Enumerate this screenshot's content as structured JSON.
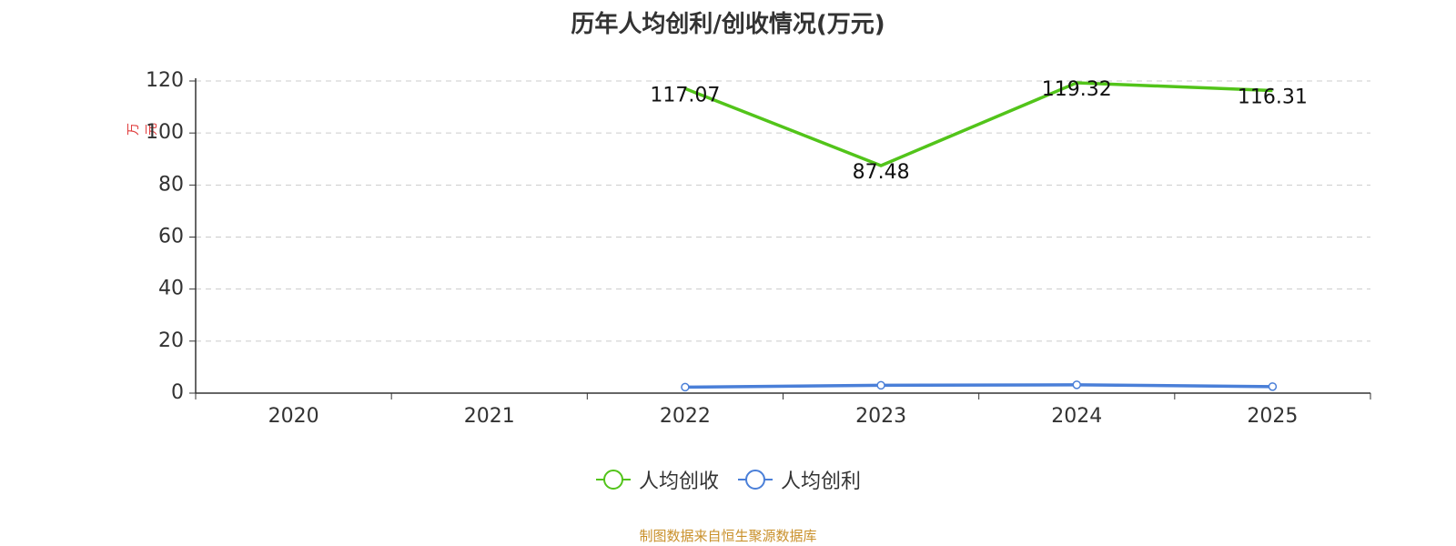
{
  "title": "历年人均创利/创收情况(万元)",
  "source_note": "制图数据来自恒生聚源数据库",
  "colors": {
    "revenue_line": "#52c41a",
    "profit_line": "#4a7fd8",
    "unit_label": "#e03c3c",
    "source_text": "#c9902a",
    "grid": "#cccccc",
    "axis": "#333333"
  },
  "chart_data": {
    "type": "line",
    "categories": [
      "2020",
      "2021",
      "2022",
      "2023",
      "2024",
      "2025"
    ],
    "ylabel": "万元",
    "ylim": [
      0,
      120
    ],
    "yticks": [
      0,
      20,
      40,
      60,
      80,
      100,
      120
    ],
    "grid": true,
    "legend_position": "bottom",
    "series": [
      {
        "name": "人均创收",
        "values": [
          null,
          null,
          117.07,
          87.48,
          119.32,
          116.31
        ],
        "data_labels": [
          "117.07",
          "87.48",
          "119.32",
          "116.31"
        ],
        "show_labels": true,
        "markers": false
      },
      {
        "name": "人均创利",
        "values": [
          null,
          null,
          2.3,
          3.0,
          3.2,
          2.5
        ],
        "show_labels": false,
        "markers": true
      }
    ]
  }
}
